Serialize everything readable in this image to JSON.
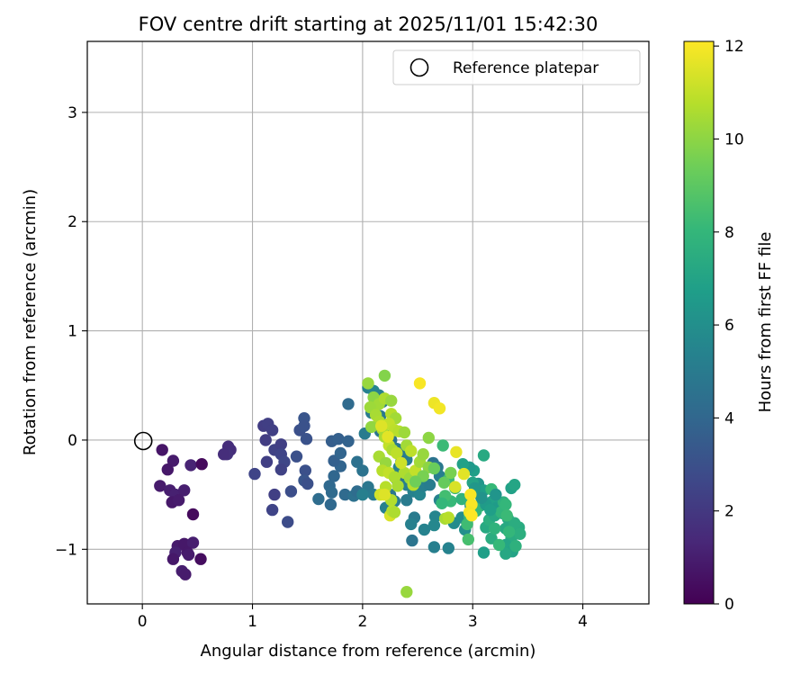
{
  "chart_data": {
    "type": "scatter",
    "title": "FOV centre drift starting at 2025/11/01 15:42:30",
    "xlabel": "Angular distance from reference (arcmin)",
    "ylabel": "Rotation from reference (arcmin)",
    "xlim": [
      -0.5,
      4.6
    ],
    "ylim": [
      -1.5,
      3.65
    ],
    "xticks": [
      0,
      1,
      2,
      3,
      4
    ],
    "xtick_labels": [
      "0",
      "1",
      "2",
      "3",
      "4"
    ],
    "yticks": [
      -1,
      0,
      1,
      2,
      3
    ],
    "ytick_labels": [
      "−1",
      "0",
      "1",
      "2",
      "3"
    ],
    "grid": true,
    "legend": {
      "position": "top-right",
      "entries": [
        "Reference platepar"
      ]
    },
    "reference_point": {
      "x": 0,
      "y": 0,
      "label": "Reference platepar"
    },
    "colorbar": {
      "label": "Hours from first FF file",
      "range": [
        0,
        12.1
      ],
      "ticks": [
        0,
        2,
        4,
        6,
        8,
        10,
        12
      ],
      "tick_labels": [
        "0",
        "2",
        "4",
        "6",
        "8",
        "10",
        "12"
      ],
      "colormap": "viridis"
    },
    "colormap_stops": [
      "#440154",
      "#482878",
      "#3e4989",
      "#31688e",
      "#26828e",
      "#1f9e89",
      "#35b779",
      "#6ece58",
      "#b5de2b",
      "#fde725"
    ],
    "point_color_value_unit": "hours",
    "points": [
      [
        0.18,
        -0.09,
        0.7
      ],
      [
        0.28,
        -0.19,
        0.9
      ],
      [
        0.23,
        -0.27,
        0.8
      ],
      [
        0.44,
        -0.23,
        1.2
      ],
      [
        0.54,
        -0.22,
        0.3
      ],
      [
        0.16,
        -0.42,
        0.9
      ],
      [
        0.25,
        -0.46,
        1.0
      ],
      [
        0.3,
        -0.5,
        1.1
      ],
      [
        0.38,
        -0.46,
        1.0
      ],
      [
        0.27,
        -0.57,
        0.8
      ],
      [
        0.33,
        -0.55,
        0.9
      ],
      [
        0.46,
        -0.68,
        0.3
      ],
      [
        0.32,
        -0.97,
        0.9
      ],
      [
        0.38,
        -0.95,
        0.8
      ],
      [
        0.46,
        -0.94,
        1.0
      ],
      [
        0.3,
        -1.03,
        1.1
      ],
      [
        0.41,
        -1.03,
        0.8
      ],
      [
        0.42,
        -1.05,
        0.9
      ],
      [
        0.28,
        -1.09,
        0.8
      ],
      [
        0.53,
        -1.09,
        0.4
      ],
      [
        0.36,
        -1.2,
        1.0
      ],
      [
        0.39,
        -1.23,
        0.9
      ],
      [
        0.78,
        -0.06,
        1.6
      ],
      [
        0.8,
        -0.09,
        1.6
      ],
      [
        0.77,
        -0.13,
        1.7
      ],
      [
        0.74,
        -0.13,
        1.6
      ],
      [
        1.1,
        0.13,
        2.2
      ],
      [
        1.14,
        0.15,
        2.3
      ],
      [
        1.18,
        0.09,
        2.3
      ],
      [
        1.12,
        0.0,
        2.2
      ],
      [
        1.2,
        -0.09,
        2.4
      ],
      [
        1.26,
        -0.04,
        2.3
      ],
      [
        1.26,
        -0.13,
        2.5
      ],
      [
        1.29,
        -0.2,
        2.6
      ],
      [
        1.26,
        -0.27,
        2.4
      ],
      [
        1.2,
        -0.5,
        2.3
      ],
      [
        1.18,
        -0.64,
        2.5
      ],
      [
        1.32,
        -0.75,
        2.8
      ],
      [
        1.35,
        -0.47,
        2.9
      ],
      [
        1.4,
        -0.15,
        3.0
      ],
      [
        1.43,
        0.09,
        3.0
      ],
      [
        1.47,
        0.2,
        3.2
      ],
      [
        1.47,
        0.13,
        3.1
      ],
      [
        1.49,
        0.01,
        3.1
      ],
      [
        1.48,
        -0.28,
        3.0
      ],
      [
        1.47,
        -0.37,
        3.2
      ],
      [
        1.5,
        -0.4,
        3.0
      ],
      [
        1.02,
        -0.31,
        2.5
      ],
      [
        1.13,
        -0.2,
        2.3
      ],
      [
        1.6,
        -0.54,
        4.3
      ],
      [
        1.7,
        -0.42,
        4.1
      ],
      [
        1.72,
        -0.48,
        4.2
      ],
      [
        1.71,
        -0.59,
        4.1
      ],
      [
        1.74,
        -0.33,
        4.0
      ],
      [
        1.8,
        -0.24,
        3.9
      ],
      [
        1.74,
        -0.19,
        3.7
      ],
      [
        1.72,
        -0.01,
        3.6
      ],
      [
        1.78,
        0.01,
        3.7
      ],
      [
        1.87,
        -0.01,
        3.8
      ],
      [
        1.8,
        -0.12,
        3.9
      ],
      [
        1.84,
        -0.5,
        4.2
      ],
      [
        1.92,
        -0.51,
        4.5
      ],
      [
        1.95,
        -0.47,
        4.3
      ],
      [
        1.87,
        0.33,
        4.2
      ],
      [
        2.0,
        -0.28,
        4.6
      ],
      [
        1.95,
        -0.2,
        4.5
      ],
      [
        2.05,
        -0.43,
        4.8
      ],
      [
        2.1,
        -0.5,
        5.0
      ],
      [
        2.0,
        -0.5,
        5.2
      ],
      [
        2.05,
        0.48,
        5.2
      ],
      [
        2.1,
        0.45,
        5.5
      ],
      [
        2.15,
        0.41,
        5.3
      ],
      [
        2.18,
        0.35,
        5.1
      ],
      [
        2.08,
        0.25,
        5.0
      ],
      [
        2.16,
        0.22,
        4.9
      ],
      [
        2.02,
        0.06,
        5.0
      ],
      [
        2.16,
        0.08,
        4.7
      ],
      [
        2.2,
        0.05,
        4.8
      ],
      [
        2.26,
        0.0,
        4.6
      ],
      [
        2.31,
        -0.08,
        4.9
      ],
      [
        2.36,
        -0.12,
        5.0
      ],
      [
        2.4,
        -0.18,
        5.1
      ],
      [
        2.33,
        -0.25,
        5.2
      ],
      [
        2.36,
        -0.33,
        5.3
      ],
      [
        2.4,
        -0.41,
        5.2
      ],
      [
        2.46,
        -0.47,
        5.4
      ],
      [
        2.52,
        -0.5,
        5.5
      ],
      [
        2.55,
        -0.42,
        5.3
      ],
      [
        2.61,
        -0.41,
        5.1
      ],
      [
        2.64,
        -0.21,
        4.6
      ],
      [
        2.68,
        -0.25,
        4.9
      ],
      [
        2.7,
        -0.33,
        5.2
      ],
      [
        2.7,
        -0.55,
        5.4
      ],
      [
        2.66,
        -0.7,
        5.5
      ],
      [
        2.65,
        -0.78,
        5.6
      ],
      [
        2.56,
        -0.82,
        5.4
      ],
      [
        2.47,
        -0.71,
        5.0
      ],
      [
        2.44,
        -0.77,
        5.3
      ],
      [
        2.4,
        -0.55,
        5.0
      ],
      [
        2.29,
        -0.56,
        5.1
      ],
      [
        2.25,
        -0.5,
        4.8
      ],
      [
        2.21,
        -0.62,
        5.3
      ],
      [
        2.45,
        -0.92,
        4.7
      ],
      [
        2.65,
        -0.98,
        5.2
      ],
      [
        2.78,
        -0.99,
        5.4
      ],
      [
        2.31,
        -0.36,
        4.5
      ],
      [
        2.35,
        -0.2,
        4.5
      ],
      [
        2.83,
        -0.76,
        5.8
      ],
      [
        2.9,
        -0.71,
        5.9
      ],
      [
        2.93,
        -0.82,
        6.0
      ],
      [
        2.98,
        -0.6,
        6.2
      ],
      [
        3.05,
        -0.49,
        6.6
      ],
      [
        3.05,
        -0.4,
        6.3
      ],
      [
        3.1,
        -0.46,
        6.7
      ],
      [
        3.18,
        -0.56,
        6.9
      ],
      [
        3.22,
        -0.62,
        6.6
      ],
      [
        3.27,
        -0.67,
        7.0
      ],
      [
        3.32,
        -0.72,
        7.2
      ],
      [
        3.3,
        -0.81,
        7.3
      ],
      [
        3.35,
        -0.9,
        7.4
      ],
      [
        3.3,
        -0.96,
        7.1
      ],
      [
        3.36,
        -1.02,
        7.0
      ],
      [
        3.3,
        -1.04,
        7.2
      ],
      [
        3.1,
        -1.03,
        6.8
      ],
      [
        3.17,
        -0.9,
        7.5
      ],
      [
        3.12,
        -0.8,
        7.3
      ],
      [
        3.15,
        -0.73,
        7.6
      ],
      [
        3.2,
        -0.69,
        7.2
      ],
      [
        3.28,
        -0.57,
        7.7
      ],
      [
        3.35,
        -0.44,
        6.9
      ],
      [
        3.38,
        -0.41,
        7.1
      ],
      [
        3.42,
        -0.8,
        7.4
      ],
      [
        3.43,
        -0.86,
        7.6
      ],
      [
        3.38,
        -0.76,
        7.5
      ],
      [
        3.0,
        -0.39,
        7.0
      ],
      [
        3.01,
        -0.28,
        6.8
      ],
      [
        2.97,
        -0.25,
        6.5
      ],
      [
        2.91,
        -0.22,
        6.9
      ],
      [
        3.1,
        -0.14,
        7.3
      ],
      [
        3.07,
        -0.6,
        7.9
      ],
      [
        3.03,
        -0.65,
        8.0
      ],
      [
        2.97,
        -0.7,
        7.8
      ],
      [
        2.95,
        -0.77,
        8.3
      ],
      [
        2.96,
        -0.91,
        8.5
      ],
      [
        2.8,
        -0.56,
        8.1
      ],
      [
        2.75,
        -0.51,
        8.4
      ],
      [
        2.72,
        -0.58,
        8.0
      ],
      [
        2.78,
        -0.36,
        8.2
      ],
      [
        2.73,
        -0.05,
        8.2
      ],
      [
        2.84,
        -0.44,
        8.0
      ],
      [
        2.9,
        -0.54,
        7.8
      ],
      [
        3.17,
        -0.45,
        8.1
      ],
      [
        3.26,
        -0.66,
        7.9
      ],
      [
        3.3,
        -0.59,
        8.0
      ],
      [
        3.2,
        -0.81,
        7.8
      ],
      [
        3.33,
        -0.84,
        8.0
      ],
      [
        3.24,
        -0.96,
        8.1
      ],
      [
        3.39,
        -0.97,
        7.7
      ],
      [
        3.31,
        -0.69,
        8.2
      ],
      [
        3.02,
        -0.44,
        6.4
      ],
      [
        3.12,
        -0.59,
        6.6
      ],
      [
        3.16,
        -0.64,
        6.8
      ],
      [
        3.21,
        -0.5,
        6.3
      ],
      [
        3.08,
        -0.53,
        6.2
      ],
      [
        2.05,
        0.52,
        10.2
      ],
      [
        2.2,
        0.59,
        9.8
      ],
      [
        2.1,
        0.39,
        10.0
      ],
      [
        2.15,
        0.33,
        10.4
      ],
      [
        2.2,
        0.38,
        10.6
      ],
      [
        2.26,
        0.36,
        10.2
      ],
      [
        2.07,
        0.3,
        10.3
      ],
      [
        2.12,
        0.23,
        10.5
      ],
      [
        2.15,
        0.17,
        10.6
      ],
      [
        2.26,
        0.24,
        10.8
      ],
      [
        2.3,
        0.2,
        10.4
      ],
      [
        2.08,
        0.12,
        10.1
      ],
      [
        2.18,
        0.1,
        10.7
      ],
      [
        2.24,
        0.15,
        11.0
      ],
      [
        2.29,
        0.09,
        10.9
      ],
      [
        2.33,
        0.08,
        10.8
      ],
      [
        2.2,
        0.03,
        10.5
      ],
      [
        2.24,
        -0.05,
        11.0
      ],
      [
        2.27,
        -0.09,
        10.6
      ],
      [
        2.31,
        -0.12,
        10.9
      ],
      [
        2.15,
        -0.15,
        10.5
      ],
      [
        2.21,
        -0.21,
        10.2
      ],
      [
        2.18,
        -0.28,
        10.8
      ],
      [
        2.24,
        -0.3,
        11.0
      ],
      [
        2.29,
        -0.34,
        10.6
      ],
      [
        2.21,
        -0.43,
        10.8
      ],
      [
        2.16,
        -0.5,
        11.3
      ],
      [
        2.26,
        -0.55,
        10.7
      ],
      [
        2.32,
        -0.42,
        10.5
      ],
      [
        2.38,
        -0.3,
        10.6
      ],
      [
        2.43,
        -0.35,
        10.3
      ],
      [
        2.46,
        -0.41,
        10.8
      ],
      [
        2.48,
        -0.28,
        11.0
      ],
      [
        2.52,
        -0.2,
        10.4
      ],
      [
        2.55,
        -0.13,
        10.2
      ],
      [
        2.4,
        -0.05,
        10.4
      ],
      [
        2.44,
        -0.1,
        10.9
      ],
      [
        2.38,
        0.07,
        10.3
      ],
      [
        2.35,
        -0.21,
        11.2
      ],
      [
        2.25,
        -0.69,
        11.4
      ],
      [
        2.27,
        -0.65,
        10.8
      ],
      [
        2.29,
        -0.66,
        10.6
      ],
      [
        2.17,
        0.13,
        11.5
      ],
      [
        2.23,
        0.03,
        11.6
      ],
      [
        2.2,
        -0.5,
        11.5
      ],
      [
        2.52,
        0.52,
        12.0
      ],
      [
        2.65,
        0.34,
        11.8
      ],
      [
        2.7,
        0.29,
        11.9
      ],
      [
        2.85,
        -0.11,
        11.7
      ],
      [
        2.92,
        -0.31,
        11.6
      ],
      [
        2.98,
        -0.5,
        12.0
      ],
      [
        2.99,
        -0.59,
        12.0
      ],
      [
        2.97,
        -0.66,
        11.9
      ],
      [
        2.99,
        -0.69,
        12.1
      ],
      [
        2.75,
        -0.72,
        10.5
      ],
      [
        2.78,
        -0.71,
        10.8
      ],
      [
        2.84,
        -0.43,
        11.4
      ],
      [
        2.4,
        -1.39,
        10.2
      ],
      [
        2.6,
        0.02,
        10.0
      ],
      [
        2.6,
        -0.25,
        10.0
      ],
      [
        2.55,
        -0.33,
        9.6
      ],
      [
        2.48,
        -0.38,
        9.4
      ],
      [
        2.65,
        -0.26,
        9.3
      ],
      [
        2.74,
        -0.39,
        9.2
      ],
      [
        2.8,
        -0.3,
        9.6
      ]
    ]
  }
}
